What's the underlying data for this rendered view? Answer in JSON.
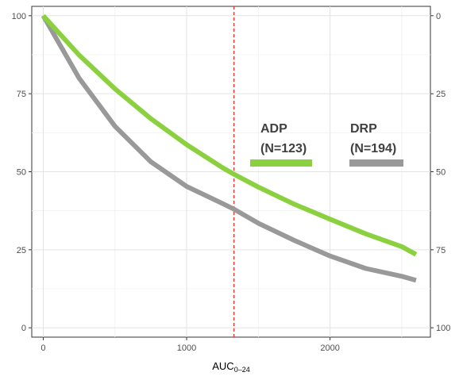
{
  "chart_data": {
    "type": "line",
    "title": "",
    "xlabel": "AUC",
    "xlabel_subscript": "0–24",
    "ylabel": "",
    "xlim": [
      -80,
      2700
    ],
    "ylim": [
      -3,
      103
    ],
    "x_ticks": [
      0,
      1000,
      2000
    ],
    "x_tick_labels": [
      "0",
      "1000",
      "2000"
    ],
    "y_ticks": [
      0,
      25,
      50,
      75,
      100
    ],
    "y_tick_labels": [
      "0",
      "25",
      "50",
      "75",
      "100"
    ],
    "y2_ticks": [
      0,
      25,
      50,
      75,
      100
    ],
    "y2_tick_labels": [
      "100",
      "75",
      "50",
      "25",
      "0"
    ],
    "grid": true,
    "reference_line": {
      "x": 1330,
      "color": "#e53935",
      "style": "dashed"
    },
    "series": [
      {
        "name": "ADP",
        "label_line2": "(N=123)",
        "color": "#8bd03f",
        "x": [
          0,
          250,
          500,
          750,
          1000,
          1250,
          1330,
          1500,
          1750,
          2000,
          2250,
          2500,
          2600
        ],
        "y": [
          100,
          87.4,
          76.6,
          67.0,
          58.7,
          51.3,
          49.2,
          45.1,
          39.6,
          34.8,
          30.1,
          26.0,
          23.5
        ]
      },
      {
        "name": "DRP",
        "label_line2": "(N=194)",
        "color": "#999999",
        "x": [
          0,
          250,
          500,
          750,
          1000,
          1250,
          1330,
          1500,
          1750,
          2000,
          2250,
          2500,
          2600
        ],
        "y": [
          100,
          80.0,
          64.6,
          53.2,
          45.3,
          39.8,
          38.0,
          33.5,
          28.0,
          23.0,
          19.0,
          16.5,
          15.2
        ]
      }
    ],
    "legend_position": "inside-right"
  }
}
